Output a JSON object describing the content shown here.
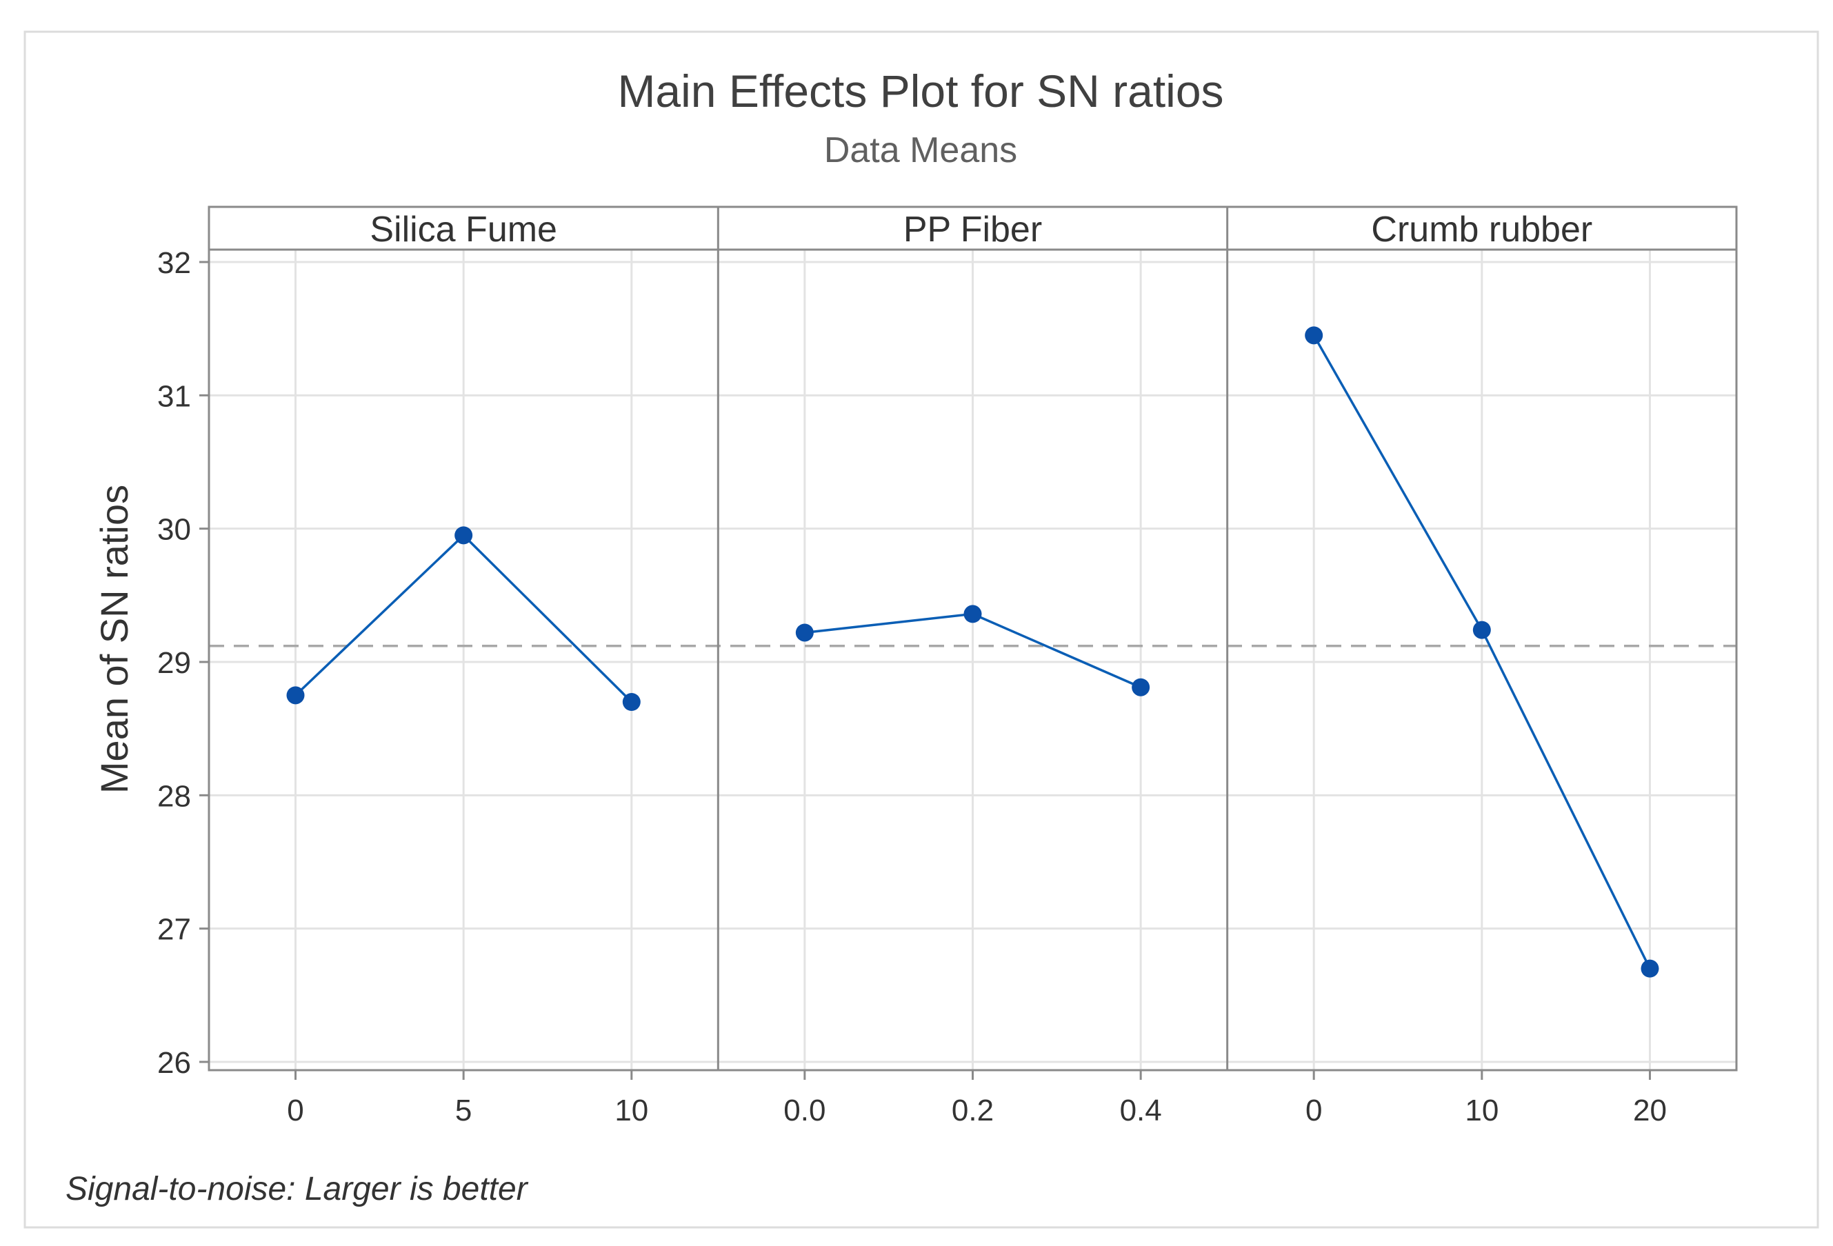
{
  "chart_data": {
    "type": "line",
    "title": "Main Effects Plot for SN ratios",
    "subtitle": "Data Means",
    "ylabel": "Mean of SN ratios",
    "ylim": [
      26,
      32
    ],
    "yticks": [
      26,
      27,
      28,
      29,
      30,
      31,
      32
    ],
    "reference_line": 29.12,
    "footnote": "Signal-to-noise: Larger is better",
    "panels": [
      {
        "name": "Silica Fume",
        "categories": [
          "0",
          "5",
          "10"
        ],
        "values": [
          28.75,
          29.95,
          28.7
        ]
      },
      {
        "name": "PP Fiber",
        "categories": [
          "0.0",
          "0.2",
          "0.4"
        ],
        "values": [
          29.22,
          29.36,
          28.81
        ]
      },
      {
        "name": "Crumb rubber",
        "categories": [
          "0",
          "10",
          "20"
        ],
        "values": [
          31.45,
          29.24,
          26.7
        ]
      }
    ],
    "grid": true
  },
  "colors": {
    "series": "#0a5eb5",
    "marker": "#0a4fa8",
    "grid": "#e3e3e3",
    "frame": "#8a8a8a",
    "reference": "#a8a8a8",
    "text": "#333333",
    "title": "#404040"
  }
}
